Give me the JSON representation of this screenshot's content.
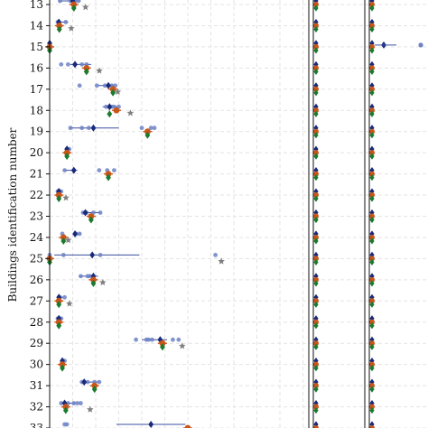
{
  "chart_data": {
    "type": "scatter",
    "title": "",
    "ylabel": "Buildings identification number",
    "xlabel": "",
    "y_categories": [
      "13",
      "14",
      "15",
      "16",
      "17",
      "18",
      "19",
      "20",
      "21",
      "22",
      "23",
      "24",
      "25",
      "26",
      "27",
      "28",
      "29",
      "30",
      "31",
      "32",
      "33"
    ],
    "x_range_panel1": [
      0,
      10
    ],
    "grid": true,
    "legend": "none",
    "colors": {
      "samples": "#6d83c4",
      "mean": "#1a2a78",
      "median": "#c9561a",
      "reference": "#1b7a2e",
      "star": "#808080",
      "spread": "#3b4fa0"
    },
    "series": [
      {
        "building": "13",
        "samples": [
          0.45,
          0.9,
          1.1,
          1.25
        ],
        "mean": 1.0,
        "median": 1.05,
        "reference": 1.05,
        "star": 1.4,
        "spread": [
          0.4,
          1.35
        ]
      },
      {
        "building": "14",
        "samples": [
          0.35,
          0.7
        ],
        "mean": 0.4,
        "median": 0.42,
        "reference": 0.42,
        "star": 0.78,
        "spread": [
          0.3,
          0.8
        ]
      },
      {
        "building": "15",
        "samples": [],
        "mean": 0.0,
        "median": 0.0,
        "reference": 0.0,
        "star": null,
        "spread": [
          0.0,
          0.0
        ]
      },
      {
        "building": "16",
        "samples": [
          0.5,
          0.8,
          1.1,
          1.4,
          1.6
        ],
        "mean": 1.1,
        "median": 1.6,
        "reference": 1.6,
        "star": 2.0,
        "spread": [
          0.9,
          1.8
        ]
      },
      {
        "building": "17",
        "samples": [
          1.3,
          2.05,
          2.4,
          2.7,
          2.85
        ],
        "mean": 2.55,
        "median": 2.75,
        "reference": 2.75,
        "star": 2.8,
        "spread": [
          2.1,
          2.8
        ]
      },
      {
        "building": "18",
        "samples": [
          2.45,
          2.7,
          2.8,
          3.0
        ],
        "mean": 2.6,
        "median": 2.9,
        "reference": 2.6,
        "star": 3.35,
        "spread": [
          2.3,
          2.95
        ]
      },
      {
        "building": "19",
        "samples": [
          0.9,
          1.4,
          1.7,
          4.0,
          4.4,
          4.55
        ],
        "mean": 1.9,
        "median": 4.25,
        "reference": 4.25,
        "star": null,
        "spread": [
          0.9,
          3.0
        ]
      },
      {
        "building": "20",
        "samples": [
          0.75,
          0.85
        ],
        "mean": 0.75,
        "median": 0.75,
        "reference": 0.75,
        "star": null,
        "spread": [
          0.7,
          0.85
        ]
      },
      {
        "building": "21",
        "samples": [
          0.65,
          1.05,
          2.15,
          2.5,
          2.8
        ],
        "mean": 1.05,
        "median": 2.55,
        "reference": 2.55,
        "star": null,
        "spread": [
          0.65,
          1.2
        ]
      },
      {
        "building": "22",
        "samples": [
          0.35,
          0.5
        ],
        "mean": 0.4,
        "median": 0.4,
        "reference": 0.4,
        "star": 0.55,
        "spread": [
          0.3,
          0.5
        ]
      },
      {
        "building": "23",
        "samples": [
          1.45,
          1.6,
          1.9,
          2.2
        ],
        "mean": 1.55,
        "median": 1.8,
        "reference": 1.8,
        "star": null,
        "spread": [
          1.4,
          2.2
        ]
      },
      {
        "building": "24",
        "samples": [
          0.55,
          1.15,
          1.3
        ],
        "mean": 1.1,
        "median": 0.6,
        "reference": 0.6,
        "star": 0.65,
        "spread": [
          1.0,
          1.35
        ]
      },
      {
        "building": "25",
        "samples": [
          0.0,
          0.6,
          2.2,
          7.2
        ],
        "mean": 1.85,
        "median": 0.0,
        "reference": 0.0,
        "star": 7.3,
        "spread": [
          0.2,
          3.9
        ]
      },
      {
        "building": "26",
        "samples": [
          1.35,
          1.65,
          1.75
        ],
        "mean": 1.9,
        "median": 1.9,
        "reference": 1.9,
        "star": 2.15,
        "spread": [
          1.3,
          2.1
        ]
      },
      {
        "building": "27",
        "samples": [
          0.45,
          0.65
        ],
        "mean": 0.4,
        "median": 0.4,
        "reference": 0.4,
        "star": 0.7,
        "spread": [
          0.35,
          0.6
        ]
      },
      {
        "building": "28",
        "samples": [
          0.35,
          0.5
        ],
        "mean": 0.4,
        "median": 0.4,
        "reference": 0.4,
        "star": null,
        "spread": [
          0.35,
          0.5
        ]
      },
      {
        "building": "29",
        "samples": [
          3.75,
          4.2,
          4.3,
          4.45,
          5.35,
          5.6
        ],
        "mean": 4.8,
        "median": 4.9,
        "reference": 4.9,
        "star": 5.6,
        "spread": [
          4.0,
          5.1
        ]
      },
      {
        "building": "30",
        "samples": [
          0.55,
          0.65
        ],
        "mean": 0.55,
        "median": 0.55,
        "reference": 0.55,
        "star": null,
        "spread": [
          0.5,
          0.65
        ]
      },
      {
        "building": "31",
        "samples": [
          1.4,
          1.65,
          1.95,
          2.15
        ],
        "mean": 1.5,
        "median": 1.95,
        "reference": 1.95,
        "star": null,
        "spread": [
          1.4,
          2.15
        ]
      },
      {
        "building": "32",
        "samples": [
          0.5,
          0.8,
          1.05,
          1.2,
          1.35
        ],
        "mean": 0.65,
        "median": 0.7,
        "reference": 0.7,
        "star": 1.6,
        "spread": [
          0.5,
          1.1
        ]
      },
      {
        "building": "33",
        "samples": [
          0.65,
          0.75
        ],
        "mean": 4.4,
        "median": 6.0,
        "reference": 6.0,
        "star": null,
        "spread": [
          2.9,
          5.9
        ]
      }
    ]
  }
}
